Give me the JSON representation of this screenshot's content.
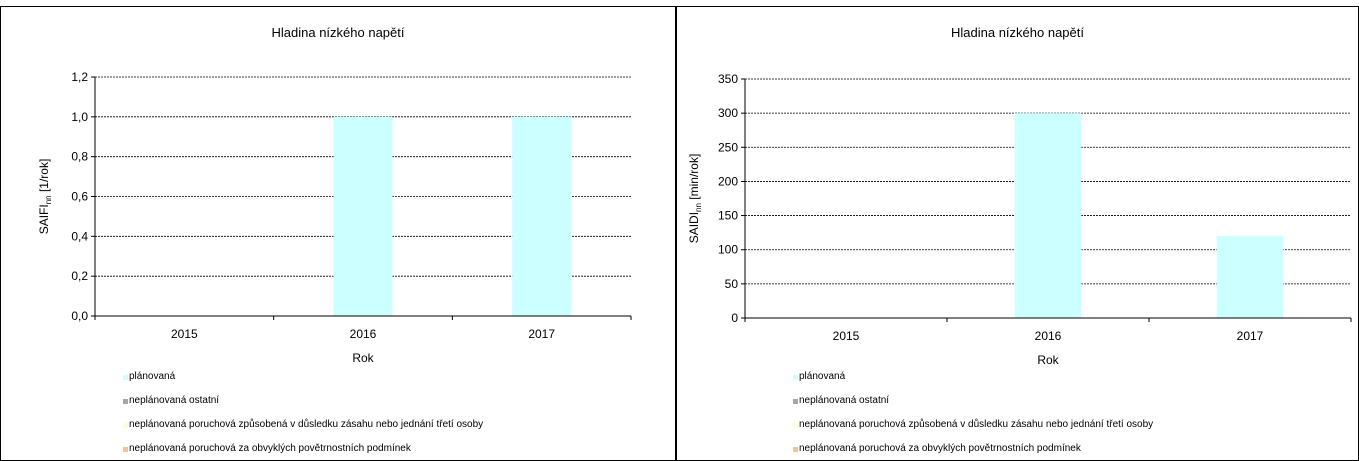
{
  "colors": {
    "planned": "#ccffff",
    "unplanned_other": "#a6a6a6",
    "unplanned_third_party": "#ffffcc",
    "unplanned_weather": "#fac090"
  },
  "legend": [
    {
      "label": "plánovaná",
      "color_key": "planned"
    },
    {
      "label": "neplánovaná ostatní",
      "color_key": "unplanned_other"
    },
    {
      "label": "neplánovaná poruchová způsobená v důsledku zásahu nebo jednání třetí osoby",
      "color_key": "unplanned_third_party"
    },
    {
      "label": "neplánovaná poruchová za obvyklých povětrnostních podmínek",
      "color_key": "unplanned_weather"
    }
  ],
  "chart_data": [
    {
      "type": "bar",
      "stacked": true,
      "title": "Hladina nízkého napětí",
      "xlabel": "Rok",
      "ylabel_main": "SAIFI",
      "ylabel_sub": "nn",
      "ylabel_unit": " [1/rok]",
      "ylim": [
        0,
        1.2
      ],
      "yticks": [
        0,
        0.2,
        0.4,
        0.6,
        0.8,
        1.0,
        1.2
      ],
      "yticklabels": [
        "0,0",
        "0,2",
        "0,4",
        "0,6",
        "0,8",
        "1,0",
        "1,2"
      ],
      "grid": true,
      "legend_position": "bottom-left",
      "categories": [
        "2015",
        "2016",
        "2017"
      ],
      "series": [
        {
          "name": "plánovaná",
          "values": [
            0,
            1.0,
            1.0
          ]
        },
        {
          "name": "neplánovaná ostatní",
          "values": [
            0,
            0,
            0
          ]
        },
        {
          "name": "neplánovaná poruchová způsobená v důsledku zásahu nebo jednání třetí osoby",
          "values": [
            0,
            0,
            0
          ]
        },
        {
          "name": "neplánovaná poruchová za obvyklých povětrnostních podmínek",
          "values": [
            0,
            0,
            0
          ]
        }
      ]
    },
    {
      "type": "bar",
      "stacked": true,
      "title": "Hladina nízkého napětí",
      "xlabel": "Rok",
      "ylabel_main": "SAIDI",
      "ylabel_sub": "nn",
      "ylabel_unit": " [min/rok]",
      "ylim": [
        0,
        350
      ],
      "yticks": [
        0,
        50,
        100,
        150,
        200,
        250,
        300,
        350
      ],
      "yticklabels": [
        "0",
        "50",
        "100",
        "150",
        "200",
        "250",
        "300",
        "350"
      ],
      "grid": true,
      "legend_position": "bottom-left",
      "categories": [
        "2015",
        "2016",
        "2017"
      ],
      "series": [
        {
          "name": "plánovaná",
          "values": [
            0,
            300,
            120
          ]
        },
        {
          "name": "neplánovaná ostatní",
          "values": [
            0,
            0,
            0
          ]
        },
        {
          "name": "neplánovaná poruchová způsobená v důsledku zásahu nebo jednání třetí osoby",
          "values": [
            0,
            0,
            0
          ]
        },
        {
          "name": "neplánovaná poruchová za obvyklých povětrnostních podmínek",
          "values": [
            0,
            0,
            0
          ]
        }
      ]
    }
  ]
}
